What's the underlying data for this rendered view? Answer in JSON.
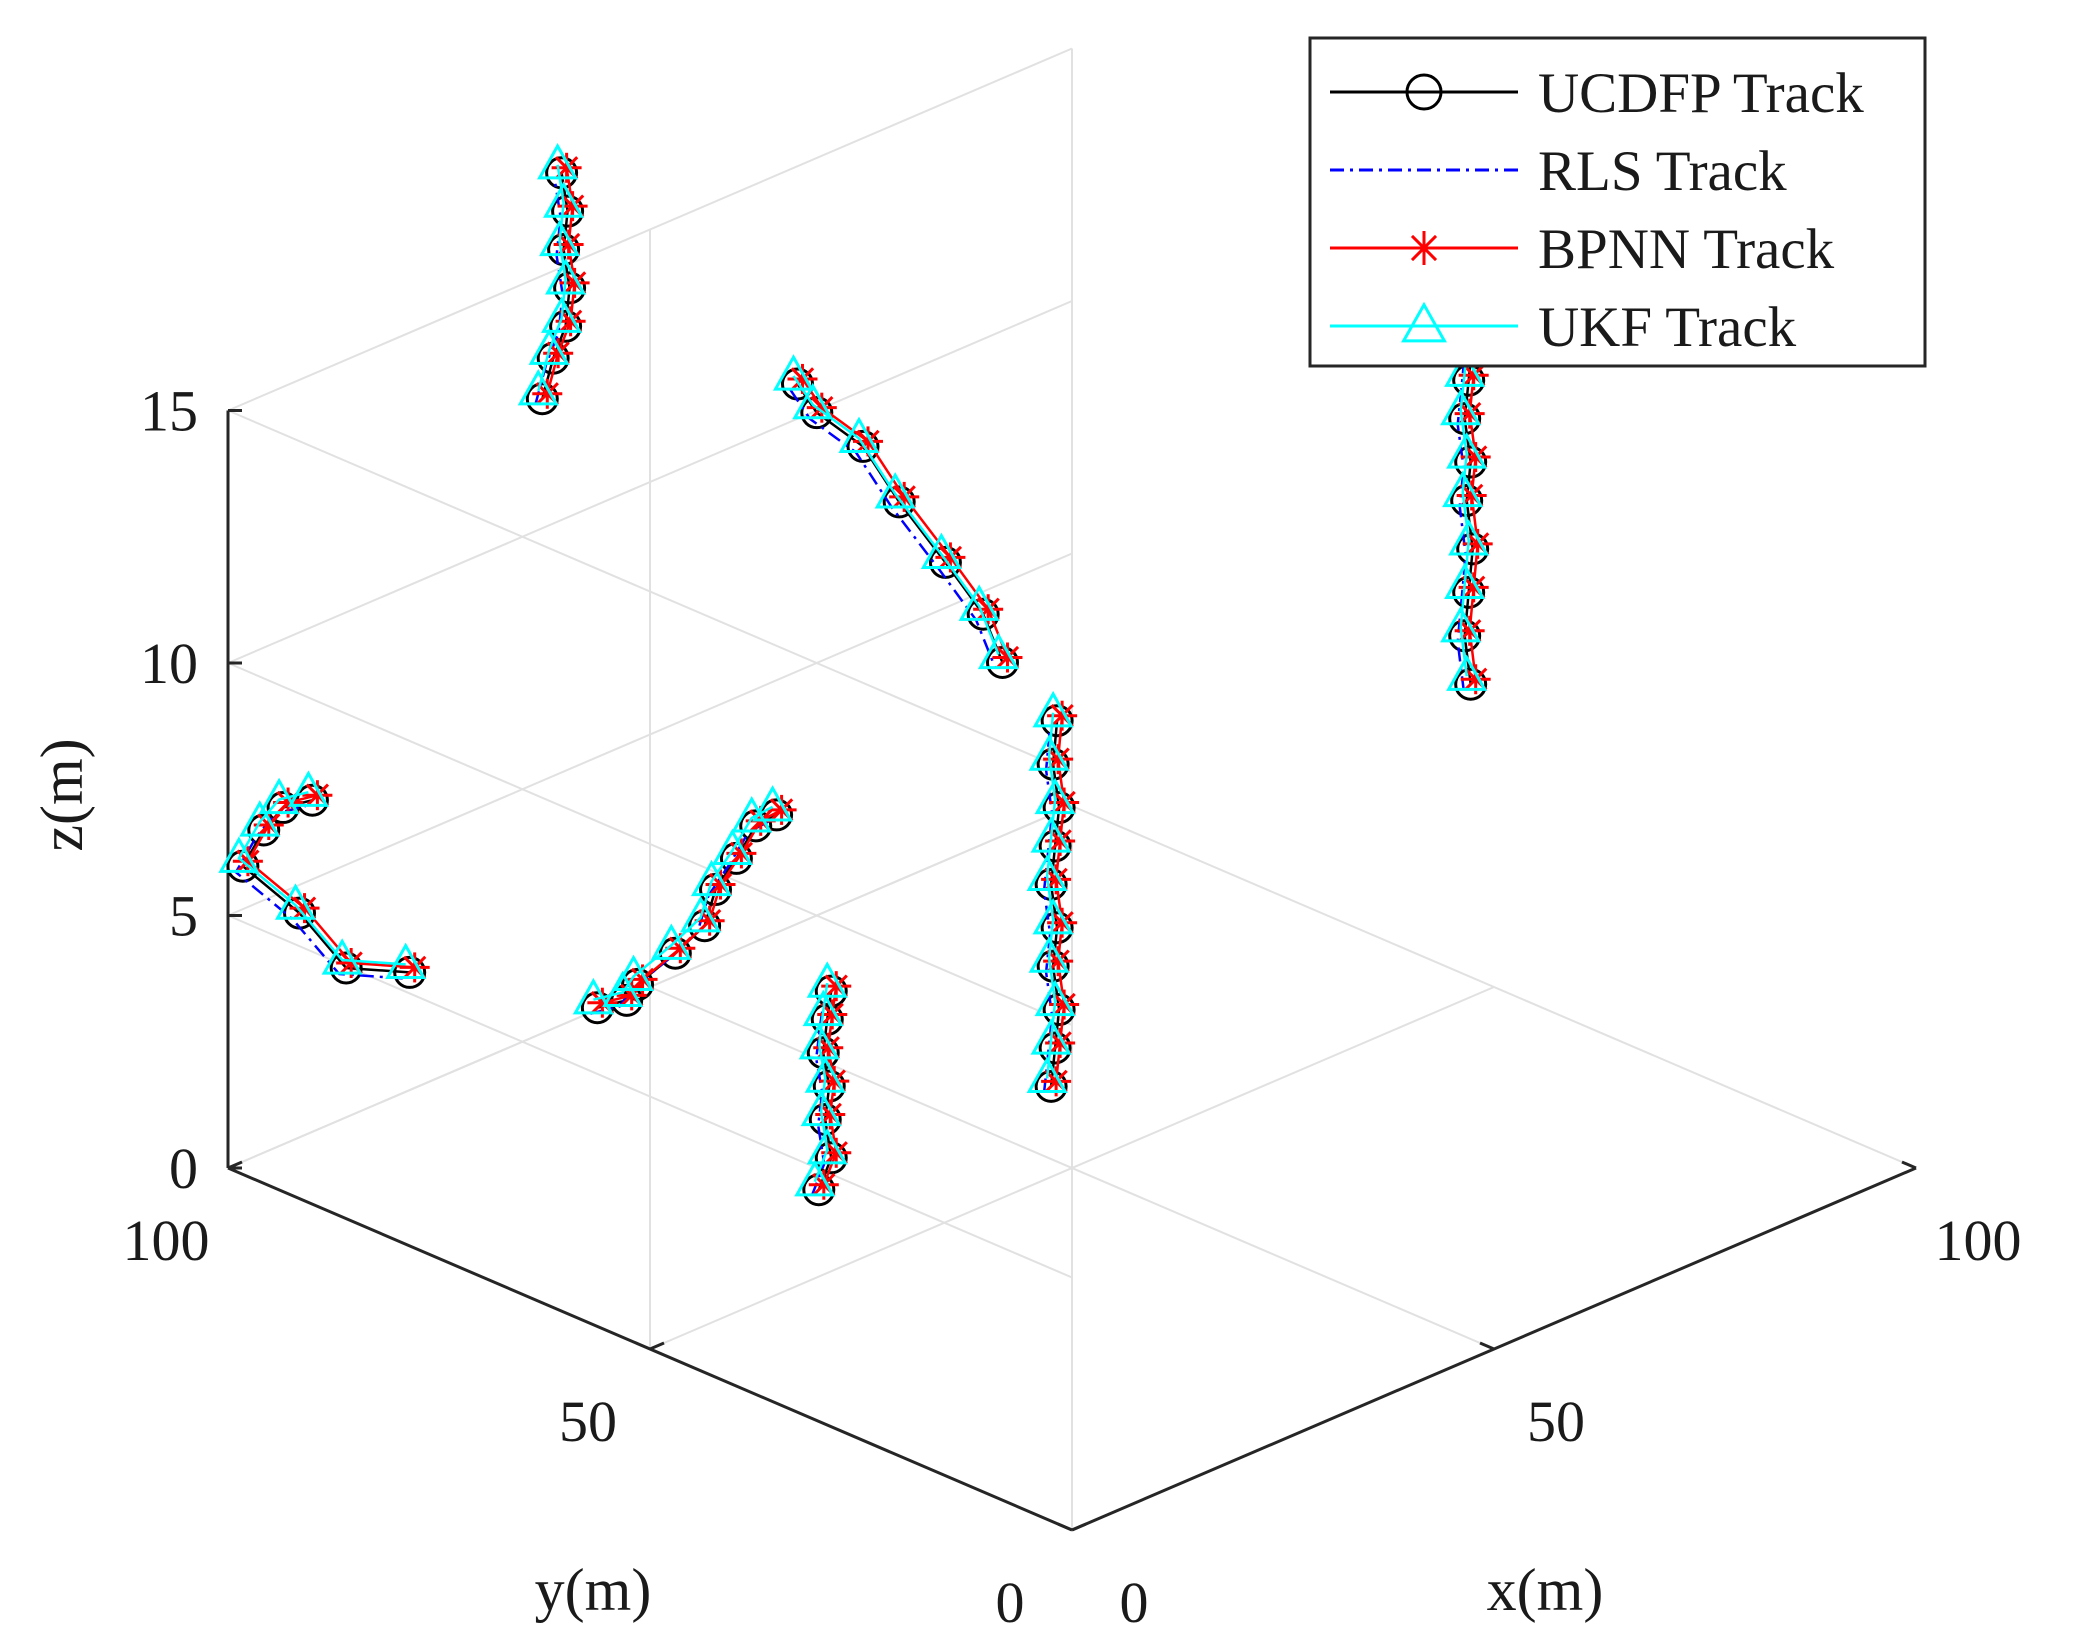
{
  "chart_data": {
    "type": "line",
    "projection": "3d",
    "title": "",
    "xlabel": "x(m)",
    "ylabel": "y(m)",
    "zlabel": "z(m)",
    "xlim": [
      0,
      100
    ],
    "ylim": [
      0,
      100
    ],
    "zlim": [
      0,
      15
    ],
    "xticks": [
      0,
      50,
      100
    ],
    "yticks": [
      0,
      50,
      100
    ],
    "zticks": [
      0,
      5,
      10,
      15
    ],
    "grid": true,
    "legend_position": "top-right",
    "colors": {
      "UCDFP Track": "#000000",
      "RLS Track": "#0000ff",
      "BPNN Track": "#ff0000",
      "UKF Track": "#00ffff",
      "axis": "#262626",
      "grid": "#e1e1e1"
    },
    "series": [
      {
        "name": "UCDFP Track",
        "line": "solid",
        "marker": "circle"
      },
      {
        "name": "RLS Track",
        "line": "dashdot",
        "marker": "none"
      },
      {
        "name": "BPNN Track",
        "line": "solid",
        "marker": "asterisk"
      },
      {
        "name": "UKF Track",
        "line": "solid",
        "marker": "triangle"
      }
    ],
    "tracks": [
      {
        "id": "A",
        "points": [
          [
            21,
            99,
            2.4
          ],
          [
            13,
            99,
            3.1
          ],
          [
            6,
            98,
            4.8
          ],
          [
            0,
            98,
            6.1
          ],
          [
            0,
            96,
            7.0
          ],
          [
            0,
            93,
            7.6
          ],
          [
            0,
            90,
            8.0
          ]
        ]
      },
      {
        "id": "B",
        "points": [
          [
            37,
            100,
            12.6
          ],
          [
            39,
            100,
            13.2
          ],
          [
            40,
            100,
            13.8
          ],
          [
            40,
            100,
            14.6
          ],
          [
            40,
            100,
            15.3
          ],
          [
            40,
            100,
            16.1
          ],
          [
            40,
            100,
            16.8
          ]
        ]
      },
      {
        "id": "C",
        "points": [
          [
            44,
            100,
            0.0
          ],
          [
            44,
            97,
            0.4
          ],
          [
            44,
            95,
            0.8
          ],
          [
            45,
            92,
            1.6
          ],
          [
            45,
            89,
            2.4
          ],
          [
            45,
            87,
            3.2
          ],
          [
            45,
            85,
            4.0
          ],
          [
            45,
            82,
            4.8
          ],
          [
            45,
            80,
            5.2
          ]
        ]
      },
      {
        "id": "D",
        "points": [
          [
            50,
            83,
            13.2
          ],
          [
            52,
            82,
            12.5
          ],
          [
            55,
            80,
            11.8
          ],
          [
            55,
            75,
            11.0
          ],
          [
            55,
            70,
            10.2
          ],
          [
            55,
            66,
            9.5
          ],
          [
            55,
            63,
            8.7
          ]
        ]
      },
      {
        "id": "E",
        "points": [
          [
            32,
            62,
            0.0
          ],
          [
            33,
            62,
            0.6
          ],
          [
            33,
            62,
            1.3
          ],
          [
            33,
            62,
            2.0
          ],
          [
            33,
            62,
            2.6
          ],
          [
            33,
            62,
            3.3
          ],
          [
            33,
            62,
            3.9
          ]
        ]
      },
      {
        "id": "F",
        "points": [
          [
            60,
            62,
            0.0
          ],
          [
            60,
            62,
            0.8
          ],
          [
            60,
            62,
            1.6
          ],
          [
            60,
            62,
            2.4
          ],
          [
            60,
            62,
            3.2
          ],
          [
            60,
            62,
            4.0
          ],
          [
            60,
            62,
            4.8
          ],
          [
            60,
            62,
            5.6
          ],
          [
            60,
            62,
            6.4
          ],
          [
            60,
            62,
            7.3
          ]
        ]
      },
      {
        "id": "G",
        "points": [
          [
            100,
            53,
            5.8
          ],
          [
            100,
            53,
            6.7
          ],
          [
            100,
            53,
            7.6
          ],
          [
            100,
            53,
            8.5
          ],
          [
            100,
            53,
            9.4
          ],
          [
            100,
            53,
            10.2
          ],
          [
            100,
            53,
            11.0
          ],
          [
            100,
            53,
            11.8
          ],
          [
            100,
            53,
            12.7
          ]
        ]
      }
    ]
  }
}
